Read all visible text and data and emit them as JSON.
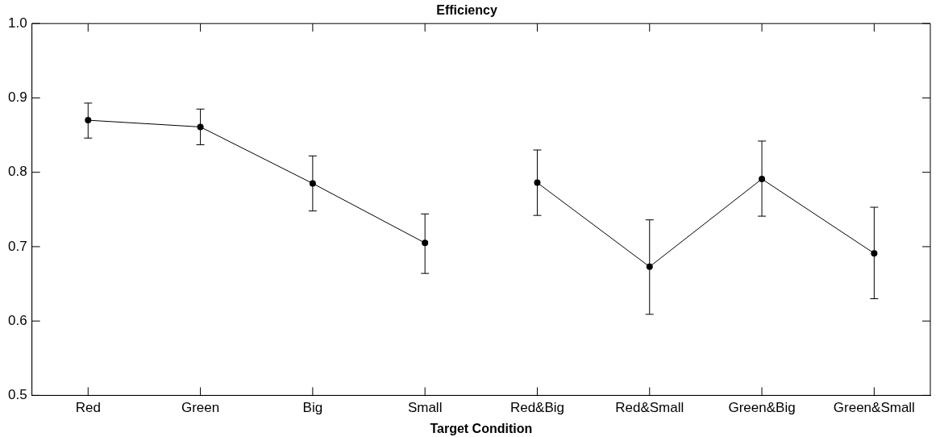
{
  "chart_data": {
    "type": "line",
    "title": "Efficiency",
    "xlabel": "Target Condition",
    "categories": [
      "Red",
      "Green",
      "Big",
      "Small",
      "Red&Big",
      "Red&Small",
      "Green&Big",
      "Green&Small"
    ],
    "series": [
      {
        "color": "#000000",
        "values": [
          0.87,
          0.861,
          0.785,
          0.705,
          null,
          null,
          null,
          null
        ],
        "errors": [
          [
            0.846,
            0.893
          ],
          [
            0.837,
            0.885
          ],
          [
            0.748,
            0.822
          ],
          [
            0.664,
            0.744
          ],
          null,
          null,
          null,
          null
        ]
      },
      {
        "color": "#000000",
        "values": [
          null,
          null,
          null,
          null,
          0.786,
          0.673,
          0.791,
          0.691
        ],
        "errors": [
          null,
          null,
          null,
          null,
          [
            0.742,
            0.83
          ],
          [
            0.609,
            0.736
          ],
          [
            0.741,
            0.842
          ],
          [
            0.63,
            0.753
          ]
        ]
      }
    ],
    "ylim": [
      0.5,
      1.0
    ],
    "yticks": [
      0.5,
      0.6,
      0.7,
      0.8,
      0.9,
      {
        "value": 1.0,
        "label": "1.0"
      }
    ],
    "grid": false,
    "legend": false,
    "marker": "circle",
    "line_style": "solid"
  }
}
